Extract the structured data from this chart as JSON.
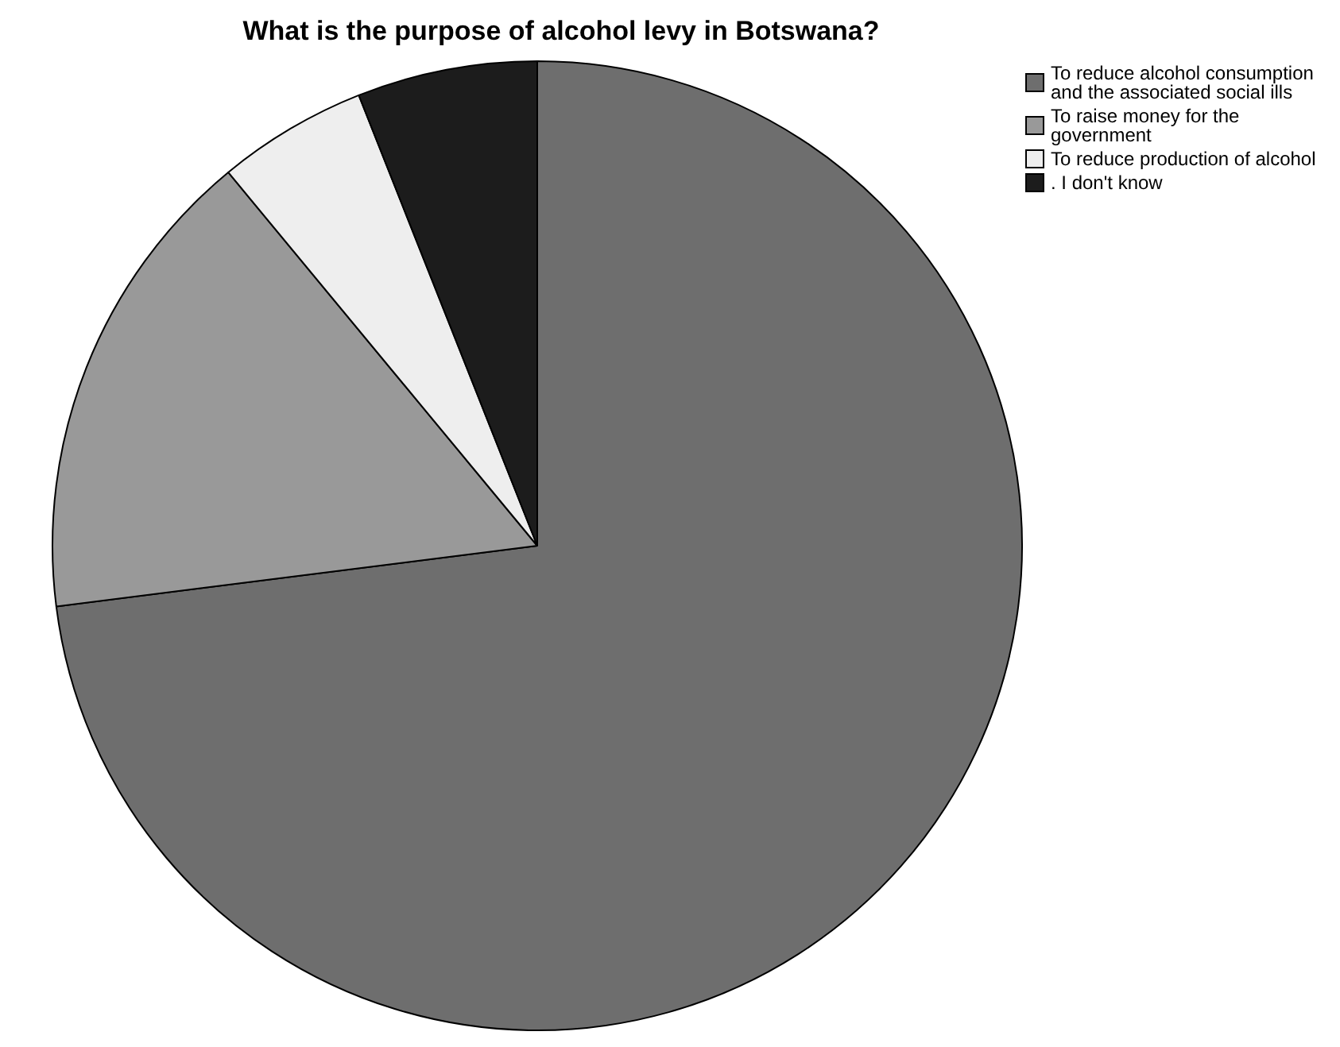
{
  "chart_data": {
    "type": "pie",
    "title": "What is the purpose of alcohol levy in Botswana?",
    "categories": [
      "To reduce alcohol consumption and the associated social ills",
      "To raise money for the government",
      "To reduce production of alcohol",
      ". I don't know"
    ],
    "values": [
      73,
      16,
      5,
      6
    ],
    "colors": [
      "#6e6e6e",
      "#999999",
      "#eeeeee",
      "#1c1c1c"
    ],
    "legend": "top right"
  }
}
